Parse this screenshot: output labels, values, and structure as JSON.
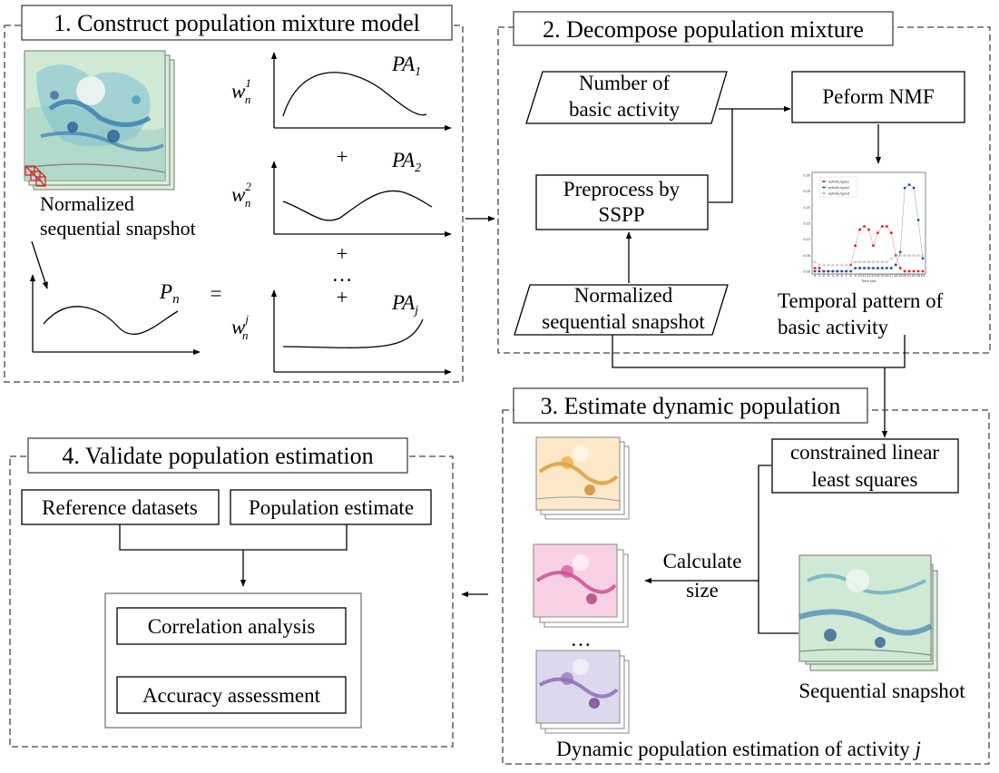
{
  "step1": {
    "title": "1. Construct population mixture model",
    "snapshot_label_1": "Normalized",
    "snapshot_label_2": "sequential snapshot",
    "p_symbol": "P",
    "p_sub": "n",
    "equals": "=",
    "plus": "+",
    "ellipsis": "…",
    "pa_symbol": "PA",
    "pa_subs": [
      "1",
      "2",
      "j"
    ],
    "w_symbol": "w",
    "w_sub": "n",
    "w_sups": [
      "1",
      "2",
      "j"
    ]
  },
  "step2": {
    "title": "2. Decompose population mixture",
    "num_activity_1": "Number of",
    "num_activity_2": "basic activity",
    "nmf_label": "Peform NMF",
    "preprocess_1": "Preprocess by",
    "preprocess_2": "SSPP",
    "snapshot_1": "Normalized",
    "snapshot_2": "sequential snapshot",
    "temporal_1": "Temporal pattern of",
    "temporal_2": "basic activity"
  },
  "step3": {
    "title": "3. Estimate dynamic population",
    "clls_1": "constrained linear",
    "clls_2": "least squares",
    "calc_1": "Calculate",
    "calc_2": "size",
    "ellipsis": "…",
    "seq_label": "Sequential snapshot",
    "dyn_label": "Dynamic population estimation of activity ",
    "dyn_label_j": "j"
  },
  "step4": {
    "title": "4. Validate population estimation",
    "reference": "Reference datasets",
    "estimate": "Population estimate",
    "correlation": "Correlation analysis",
    "accuracy": "Accuracy assessment"
  },
  "colors": {
    "map_teal": "#2b8cbe",
    "map_orange": "#e8a33d",
    "map_pink": "#d64f97",
    "map_purple": "#8c72b5",
    "series_1": "#e31a1c",
    "series_2": "#1f4e9c",
    "series_3": "#aaaaaa"
  },
  "chart_data": {
    "type": "line",
    "xlabel": "Time slot",
    "x": [
      0,
      1,
      2,
      3,
      4,
      5,
      6,
      7,
      8,
      9,
      10,
      11,
      12,
      13,
      14,
      15,
      16,
      17,
      18,
      19,
      20,
      21,
      22,
      23,
      24
    ],
    "ylim": [
      0,
      0.3
    ],
    "yticks": [
      "0.00",
      "0.05",
      "0.10",
      "0.15",
      "0.20",
      "0.25",
      "0.30"
    ],
    "legend_position": "top-left",
    "series": [
      {
        "name": "activity type1",
        "color": "#e31a1c",
        "values": [
          0.01,
          0.01,
          0.0,
          0.0,
          0.0,
          0.0,
          0.0,
          0.0,
          0.02,
          0.08,
          0.13,
          0.14,
          0.13,
          0.08,
          0.12,
          0.14,
          0.14,
          0.12,
          0.05,
          0.01,
          0.0,
          0.0,
          0.0,
          0.0,
          0.0
        ]
      },
      {
        "name": "activity type2",
        "color": "#1f4e9c",
        "values": [
          0.0,
          0.0,
          0.0,
          0.0,
          0.0,
          0.0,
          0.0,
          0.0,
          0.0,
          0.01,
          0.01,
          0.01,
          0.01,
          0.01,
          0.01,
          0.01,
          0.01,
          0.01,
          0.02,
          0.06,
          0.26,
          0.27,
          0.26,
          0.16,
          0.04
        ]
      },
      {
        "name": "activity type3",
        "color": "#aaaaaa",
        "values": [
          0.03,
          0.02,
          0.02,
          0.02,
          0.02,
          0.02,
          0.02,
          0.02,
          0.02,
          0.03,
          0.03,
          0.03,
          0.03,
          0.03,
          0.03,
          0.03,
          0.03,
          0.04,
          0.05,
          0.05,
          0.05,
          0.05,
          0.05,
          0.05,
          0.05
        ]
      }
    ]
  }
}
